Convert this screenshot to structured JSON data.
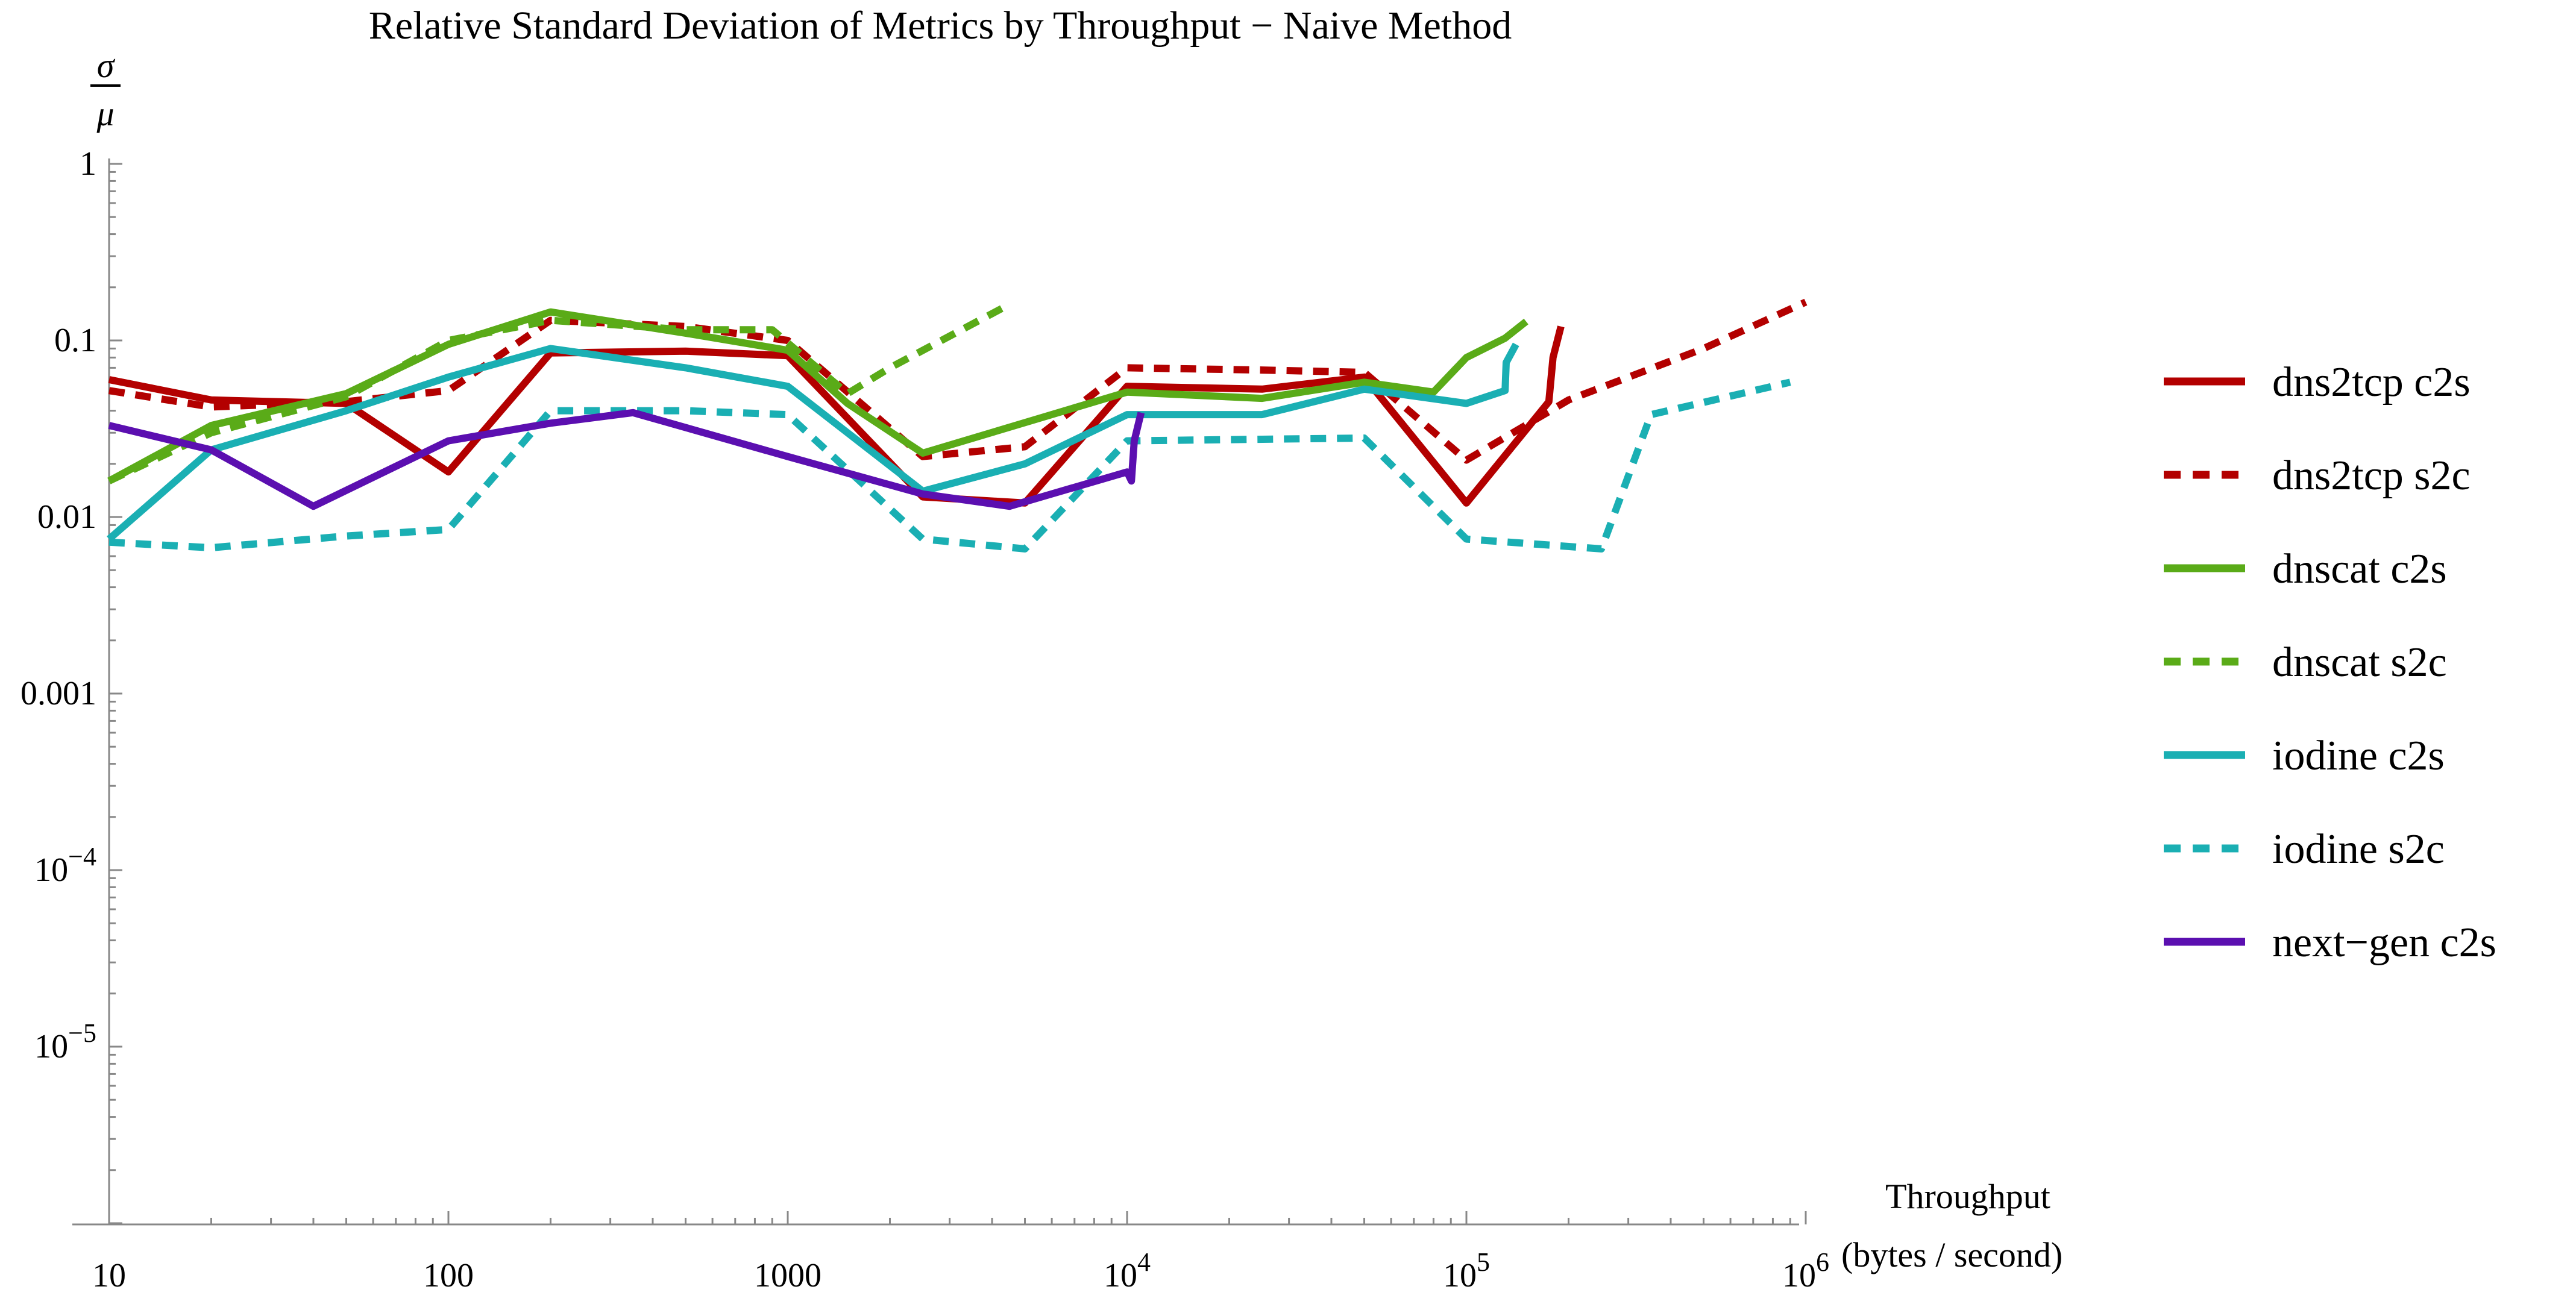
{
  "chart_data": {
    "type": "line",
    "title": "Relative Standard Deviation of Metrics by Throughput − Naive Method",
    "ylabel_top": "σ",
    "ylabel_bottom": "μ",
    "xlabel_line1": "Throughput",
    "xlabel_line2": "(bytes / second)",
    "x_scale": "log",
    "y_scale": "log",
    "xlim": [
      10,
      1000000
    ],
    "ylim": [
      1e-06,
      1
    ],
    "grid": false,
    "legend_position": "right",
    "x_tick_labels": [
      {
        "value": 10,
        "base": "10",
        "exp": ""
      },
      {
        "value": 100,
        "base": "100",
        "exp": ""
      },
      {
        "value": 1000,
        "base": "1000",
        "exp": ""
      },
      {
        "value": 10000,
        "base": "10",
        "exp": "4"
      },
      {
        "value": 100000,
        "base": "10",
        "exp": "5"
      },
      {
        "value": 1000000,
        "base": "10",
        "exp": "6"
      }
    ],
    "y_tick_labels": [
      {
        "value": 1,
        "base": "1",
        "exp": ""
      },
      {
        "value": 0.1,
        "base": "0.1",
        "exp": ""
      },
      {
        "value": 0.01,
        "base": "0.01",
        "exp": ""
      },
      {
        "value": 0.001,
        "base": "0.001",
        "exp": ""
      },
      {
        "value": 0.0001,
        "base": "10",
        "exp": "−4"
      },
      {
        "value": 1e-05,
        "base": "10",
        "exp": "−5"
      }
    ],
    "series": [
      {
        "name": "dns2tcp c2s",
        "color": "#b30000",
        "dashed": false,
        "x": [
          10,
          20,
          50,
          100,
          200,
          500,
          1000,
          2500,
          5000,
          10000,
          25000,
          50000,
          100000,
          175000,
          180000,
          190000
        ],
        "y": [
          0.06,
          0.046,
          0.044,
          0.018,
          0.085,
          0.087,
          0.082,
          0.013,
          0.012,
          0.055,
          0.053,
          0.062,
          0.012,
          0.045,
          0.08,
          0.12
        ]
      },
      {
        "name": "dns2tcp s2c",
        "color": "#b30000",
        "dashed": true,
        "x": [
          10,
          20,
          50,
          100,
          200,
          500,
          1000,
          2500,
          5000,
          10000,
          25000,
          50000,
          100000,
          200000,
          500000,
          1000000
        ],
        "y": [
          0.052,
          0.042,
          0.045,
          0.052,
          0.13,
          0.12,
          0.1,
          0.022,
          0.025,
          0.07,
          0.068,
          0.066,
          0.021,
          0.046,
          0.09,
          0.165
        ]
      },
      {
        "name": "dnscat c2s",
        "color": "#5aab18",
        "dashed": false,
        "x": [
          10,
          20,
          50,
          100,
          200,
          500,
          1000,
          1500,
          2500,
          10000,
          25000,
          50000,
          80000,
          100000,
          130000,
          150000
        ],
        "y": [
          0.016,
          0.033,
          0.05,
          0.095,
          0.145,
          0.11,
          0.088,
          0.044,
          0.023,
          0.051,
          0.047,
          0.058,
          0.051,
          0.08,
          0.103,
          0.128
        ]
      },
      {
        "name": "dnscat s2c",
        "color": "#5aab18",
        "dashed": true,
        "x": [
          10,
          20,
          50,
          100,
          200,
          500,
          900,
          1500,
          2000,
          4500
        ],
        "y": [
          0.016,
          0.03,
          0.048,
          0.1,
          0.13,
          0.115,
          0.115,
          0.05,
          0.07,
          0.16
        ]
      },
      {
        "name": "iodine c2s",
        "color": "#1aafb3",
        "dashed": false,
        "x": [
          10,
          20,
          50,
          100,
          200,
          500,
          1000,
          2500,
          5000,
          10000,
          25000,
          50000,
          100000,
          130000,
          131000,
          140000
        ],
        "y": [
          0.0075,
          0.024,
          0.04,
          0.062,
          0.09,
          0.07,
          0.055,
          0.014,
          0.02,
          0.038,
          0.038,
          0.053,
          0.044,
          0.052,
          0.075,
          0.095
        ]
      },
      {
        "name": "iodine s2c",
        "color": "#1aafb3",
        "dashed": true,
        "x": [
          10,
          20,
          50,
          100,
          200,
          500,
          1000,
          2500,
          5000,
          10000,
          50000,
          100000,
          250000,
          350000,
          900000
        ],
        "y": [
          0.0072,
          0.0067,
          0.0078,
          0.0085,
          0.04,
          0.04,
          0.038,
          0.0075,
          0.0066,
          0.027,
          0.028,
          0.0075,
          0.0066,
          0.038,
          0.058
        ]
      },
      {
        "name": "next−gen c2s",
        "color": "#5b0fb0",
        "dashed": false,
        "x": [
          10,
          20,
          40,
          100,
          200,
          350,
          1000,
          2500,
          4500,
          10000,
          10300,
          10500,
          11000
        ],
        "y": [
          0.033,
          0.024,
          0.0115,
          0.027,
          0.034,
          0.039,
          0.022,
          0.0135,
          0.0115,
          0.018,
          0.016,
          0.027,
          0.039
        ]
      }
    ]
  }
}
